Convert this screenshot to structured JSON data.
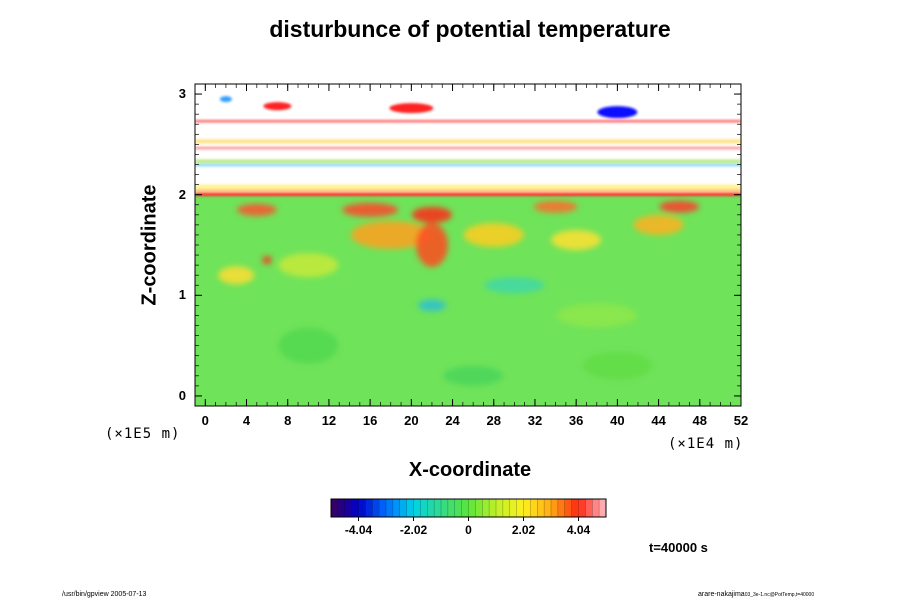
{
  "chart_data": {
    "type": "heatmap",
    "title": "disturbunce of potential temperature",
    "xlabel": "X-coordinate",
    "ylabel": "Z-coordinate",
    "x_unit": "(×1E4 m)",
    "y_unit": "(×1E5 m)",
    "xlim": [
      -1,
      52
    ],
    "ylim": [
      -0.1,
      3.1
    ],
    "x_ticks": [
      "0",
      "4",
      "8",
      "12",
      "16",
      "20",
      "24",
      "28",
      "32",
      "36",
      "40",
      "44",
      "48",
      "52"
    ],
    "y_ticks": [
      "0",
      "1",
      "2",
      "3"
    ],
    "colorbar": {
      "range": [
        -5.05,
        5.05
      ],
      "ticks": [
        "-4.04",
        "-2.02",
        "0",
        "2.02",
        "4.04"
      ]
    },
    "time_label": "t=40000 s"
  },
  "footer": {
    "left": "/usr/bin/gpview 2005-07-13",
    "right": "arare-nakajima",
    "right_small": "03_3e-1.nc@PotTemp,t=40000"
  }
}
